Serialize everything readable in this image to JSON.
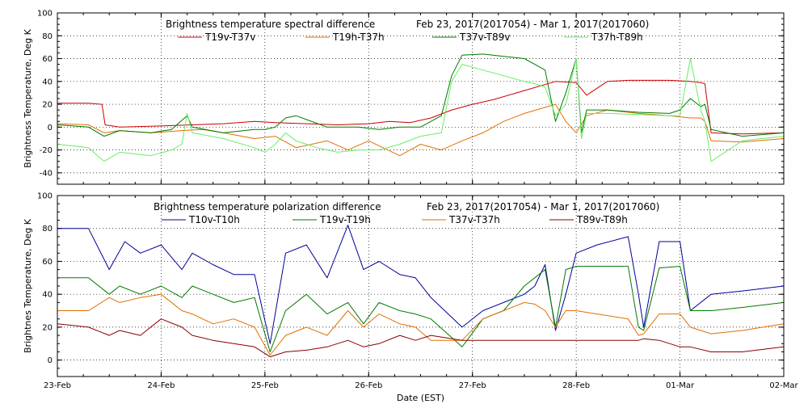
{
  "chart_data": [
    {
      "type": "line",
      "title": "Brightness temperature spectral difference",
      "date_range": "Feb 23, 2017(2017054) - Mar  1, 2017(2017060)",
      "ylabel": "Brightness Temperature, Deg K",
      "ylim": [
        -50,
        100
      ],
      "yticks": [
        -40,
        -20,
        0,
        20,
        40,
        60,
        80,
        100
      ],
      "xlim": [
        0,
        7
      ],
      "series": [
        {
          "name": "T19v-T37v",
          "color": "#cc0000",
          "x": [
            0,
            0.3,
            0.43,
            0.46,
            0.6,
            1.0,
            1.3,
            1.6,
            1.9,
            2.1,
            2.4,
            2.7,
            3.0,
            3.2,
            3.4,
            3.6,
            3.8,
            4.0,
            4.2,
            4.5,
            4.8,
            5.0,
            5.1,
            5.3,
            5.5,
            5.7,
            5.9,
            6.1,
            6.2,
            6.24,
            6.3,
            6.6,
            7
          ],
          "y": [
            21,
            21,
            20,
            2,
            0,
            1,
            2,
            3,
            5,
            4,
            3,
            2,
            3,
            5,
            4,
            8,
            15,
            20,
            24,
            32,
            40,
            39,
            28,
            40,
            41,
            41,
            41,
            40,
            39,
            38,
            -5,
            -6,
            -5
          ]
        },
        {
          "name": "T19h-T37h",
          "color": "#e07000",
          "x": [
            0,
            0.3,
            0.45,
            0.6,
            0.9,
            1.2,
            1.4,
            1.6,
            1.9,
            2.1,
            2.3,
            2.6,
            2.8,
            3.0,
            3.3,
            3.5,
            3.7,
            3.9,
            4.1,
            4.3,
            4.5,
            4.8,
            4.9,
            5.0,
            5.1,
            5.3,
            5.6,
            5.9,
            6.1,
            6.2,
            6.24,
            6.3,
            6.6,
            7
          ],
          "y": [
            3,
            2,
            -5,
            -3,
            -5,
            -3,
            -2,
            -5,
            -10,
            -8,
            -18,
            -12,
            -20,
            -12,
            -25,
            -15,
            -20,
            -12,
            -5,
            5,
            12,
            20,
            5,
            -5,
            10,
            15,
            12,
            10,
            8,
            8,
            5,
            -12,
            -13,
            -10
          ]
        },
        {
          "name": "T37v-T89v",
          "color": "#007a00",
          "x": [
            0,
            0.3,
            0.45,
            0.6,
            0.9,
            1.1,
            1.25,
            1.3,
            1.6,
            1.9,
            2.0,
            2.1,
            2.2,
            2.3,
            2.6,
            2.9,
            3.1,
            3.3,
            3.5,
            3.7,
            3.8,
            3.9,
            4.1,
            4.3,
            4.5,
            4.6,
            4.7,
            4.8,
            4.9,
            5.0,
            5.05,
            5.1,
            5.3,
            5.6,
            5.9,
            6.0,
            6.1,
            6.2,
            6.24,
            6.3,
            6.6,
            7
          ],
          "y": [
            2,
            0,
            -8,
            -3,
            -5,
            -2,
            10,
            0,
            -5,
            -2,
            -2,
            0,
            8,
            10,
            0,
            0,
            -2,
            0,
            0,
            10,
            45,
            63,
            64,
            62,
            60,
            55,
            50,
            5,
            30,
            60,
            -5,
            15,
            15,
            13,
            12,
            15,
            25,
            18,
            20,
            -2,
            -8,
            -5
          ]
        },
        {
          "name": "T37h-T89h",
          "color": "#66ee66",
          "x": [
            0,
            0.3,
            0.45,
            0.6,
            0.9,
            1.1,
            1.2,
            1.25,
            1.3,
            1.6,
            1.9,
            2.0,
            2.1,
            2.2,
            2.3,
            2.5,
            2.7,
            2.9,
            3.1,
            3.3,
            3.5,
            3.7,
            3.8,
            3.9,
            4.1,
            4.3,
            4.5,
            4.6,
            4.7,
            4.8,
            4.9,
            5.0,
            5.05,
            5.1,
            5.3,
            5.6,
            5.9,
            6.0,
            6.1,
            6.2,
            6.24,
            6.3,
            6.6,
            7
          ],
          "y": [
            -15,
            -18,
            -30,
            -22,
            -25,
            -20,
            -15,
            12,
            -5,
            -10,
            -18,
            -22,
            -15,
            -5,
            -12,
            -18,
            -22,
            -20,
            -20,
            -15,
            -8,
            -5,
            40,
            55,
            50,
            45,
            40,
            38,
            35,
            10,
            20,
            60,
            -10,
            12,
            12,
            11,
            10,
            10,
            60,
            15,
            5,
            -30,
            -12,
            -8
          ]
        }
      ]
    },
    {
      "type": "line",
      "title": "Brightness temperature polarization difference",
      "date_range": "Feb 23, 2017(2017054) - Mar  1, 2017(2017060)",
      "ylabel": "Brightnes Temperature, Deg K",
      "xlabel": "Date (EST)",
      "ylim": [
        -10,
        100
      ],
      "yticks": [
        0,
        20,
        40,
        60,
        80,
        100
      ],
      "xlim": [
        0,
        7
      ],
      "xticks": [
        "23-Feb",
        "24-Feb",
        "25-Feb",
        "26-Feb",
        "27-Feb",
        "28-Feb",
        "01-Mar",
        "02-Mar"
      ],
      "series": [
        {
          "name": "T10v-T10h",
          "color": "#000099",
          "x": [
            0,
            0.3,
            0.5,
            0.65,
            0.8,
            1.0,
            1.2,
            1.3,
            1.5,
            1.7,
            1.9,
            2.05,
            2.2,
            2.4,
            2.6,
            2.8,
            2.95,
            3.1,
            3.3,
            3.45,
            3.6,
            3.9,
            4.1,
            4.3,
            4.5,
            4.6,
            4.7,
            4.8,
            4.9,
            5.0,
            5.2,
            5.5,
            5.6,
            5.65,
            5.8,
            6.0,
            6.1,
            6.3,
            6.6,
            7
          ],
          "y": [
            80,
            80,
            55,
            72,
            65,
            70,
            55,
            65,
            58,
            52,
            52,
            10,
            65,
            70,
            50,
            82,
            55,
            60,
            52,
            50,
            38,
            20,
            30,
            35,
            40,
            45,
            58,
            18,
            40,
            65,
            70,
            75,
            40,
            20,
            72,
            72,
            30,
            40,
            42,
            45
          ]
        },
        {
          "name": "T19v-T19h",
          "color": "#007a00",
          "x": [
            0,
            0.3,
            0.5,
            0.6,
            0.8,
            1.0,
            1.2,
            1.3,
            1.5,
            1.7,
            1.9,
            2.05,
            2.2,
            2.4,
            2.6,
            2.8,
            2.95,
            3.1,
            3.3,
            3.45,
            3.6,
            3.9,
            4.1,
            4.3,
            4.5,
            4.6,
            4.7,
            4.8,
            4.9,
            5.0,
            5.2,
            5.5,
            5.6,
            5.65,
            5.8,
            6.0,
            6.1,
            6.3,
            6.6,
            7
          ],
          "y": [
            50,
            50,
            40,
            45,
            40,
            45,
            38,
            45,
            40,
            35,
            38,
            5,
            30,
            40,
            28,
            35,
            22,
            35,
            30,
            28,
            25,
            8,
            25,
            30,
            45,
            50,
            55,
            20,
            55,
            57,
            57,
            57,
            20,
            18,
            56,
            57,
            30,
            30,
            32,
            35
          ]
        },
        {
          "name": "T37v-T37h",
          "color": "#e07000",
          "x": [
            0,
            0.3,
            0.5,
            0.6,
            0.8,
            1.0,
            1.2,
            1.3,
            1.5,
            1.7,
            1.9,
            2.05,
            2.2,
            2.4,
            2.6,
            2.8,
            2.95,
            3.1,
            3.3,
            3.45,
            3.6,
            3.9,
            4.1,
            4.3,
            4.5,
            4.6,
            4.7,
            4.8,
            4.9,
            5.0,
            5.2,
            5.5,
            5.6,
            5.65,
            5.8,
            6.0,
            6.1,
            6.3,
            6.6,
            7
          ],
          "y": [
            30,
            30,
            38,
            35,
            38,
            40,
            30,
            28,
            22,
            25,
            20,
            3,
            15,
            20,
            15,
            30,
            20,
            28,
            22,
            20,
            12,
            12,
            25,
            30,
            35,
            34,
            30,
            20,
            30,
            30,
            28,
            25,
            15,
            16,
            28,
            28,
            20,
            16,
            18,
            22
          ]
        },
        {
          "name": "T89v-T89h",
          "color": "#880000",
          "x": [
            0,
            0.3,
            0.5,
            0.6,
            0.8,
            1.0,
            1.2,
            1.3,
            1.5,
            1.7,
            1.9,
            2.05,
            2.2,
            2.4,
            2.6,
            2.8,
            2.95,
            3.1,
            3.3,
            3.45,
            3.6,
            3.9,
            4.1,
            4.3,
            4.5,
            4.6,
            4.7,
            4.8,
            4.9,
            5.0,
            5.2,
            5.5,
            5.6,
            5.65,
            5.8,
            6.0,
            6.1,
            6.3,
            6.6,
            7
          ],
          "y": [
            22,
            20,
            15,
            18,
            15,
            25,
            20,
            15,
            12,
            10,
            8,
            2,
            5,
            6,
            8,
            12,
            8,
            10,
            15,
            12,
            15,
            12,
            12,
            12,
            12,
            12,
            12,
            12,
            12,
            12,
            12,
            12,
            12,
            13,
            12,
            8,
            8,
            5,
            5,
            8
          ]
        }
      ]
    }
  ]
}
